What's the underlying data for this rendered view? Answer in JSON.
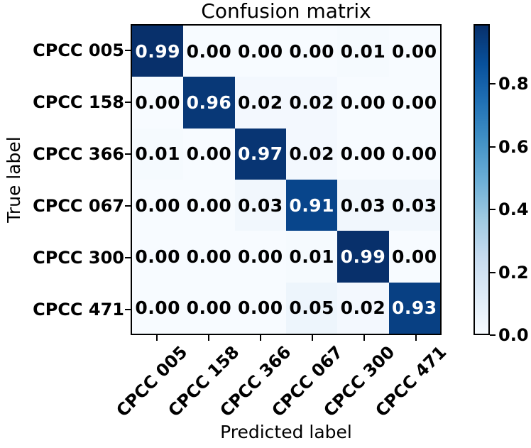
{
  "chart_data": {
    "type": "heatmap",
    "title": "Confusion matrix",
    "xlabel": "Predicted label",
    "ylabel": "True label",
    "x_categories": [
      "CPCC 005",
      "CPCC 158",
      "CPCC 366",
      "CPCC 067",
      "CPCC 300",
      "CPCC 471"
    ],
    "y_categories": [
      "CPCC 005",
      "CPCC 158",
      "CPCC 366",
      "CPCC 067",
      "CPCC 300",
      "CPCC 471"
    ],
    "matrix": [
      [
        0.99,
        0.0,
        0.0,
        0.0,
        0.01,
        0.0
      ],
      [
        0.0,
        0.96,
        0.02,
        0.02,
        0.0,
        0.0
      ],
      [
        0.01,
        0.0,
        0.97,
        0.02,
        0.0,
        0.0
      ],
      [
        0.0,
        0.0,
        0.03,
        0.91,
        0.03,
        0.03
      ],
      [
        0.0,
        0.0,
        0.0,
        0.01,
        0.99,
        0.0
      ],
      [
        0.0,
        0.0,
        0.0,
        0.05,
        0.02,
        0.93
      ]
    ],
    "value_decimals": 2,
    "vmin": 0.0,
    "vmax": 0.99,
    "colormap": "Blues",
    "colormap_stops": [
      {
        "t": 0.0,
        "color": "#f7fbff"
      },
      {
        "t": 0.125,
        "color": "#deebf7"
      },
      {
        "t": 0.25,
        "color": "#c6dbef"
      },
      {
        "t": 0.375,
        "color": "#9ecae1"
      },
      {
        "t": 0.5,
        "color": "#6baed6"
      },
      {
        "t": 0.625,
        "color": "#4292c6"
      },
      {
        "t": 0.75,
        "color": "#2171b5"
      },
      {
        "t": 0.875,
        "color": "#08519c"
      },
      {
        "t": 1.0,
        "color": "#08306b"
      }
    ],
    "colorbar": {
      "position": "right",
      "tick_labels": [
        "0.0",
        "0.2",
        "0.4",
        "0.6",
        "0.8"
      ],
      "tick_values": [
        0.0,
        0.2,
        0.4,
        0.6,
        0.8
      ]
    },
    "cell_text_color_light": "#ffffff",
    "cell_text_color_dark": "#000000",
    "frame_color": "#000000",
    "background_color": "#ffffff",
    "grid": false,
    "x_tick_rotation_deg": 45,
    "tick_label_weight": "bold"
  }
}
